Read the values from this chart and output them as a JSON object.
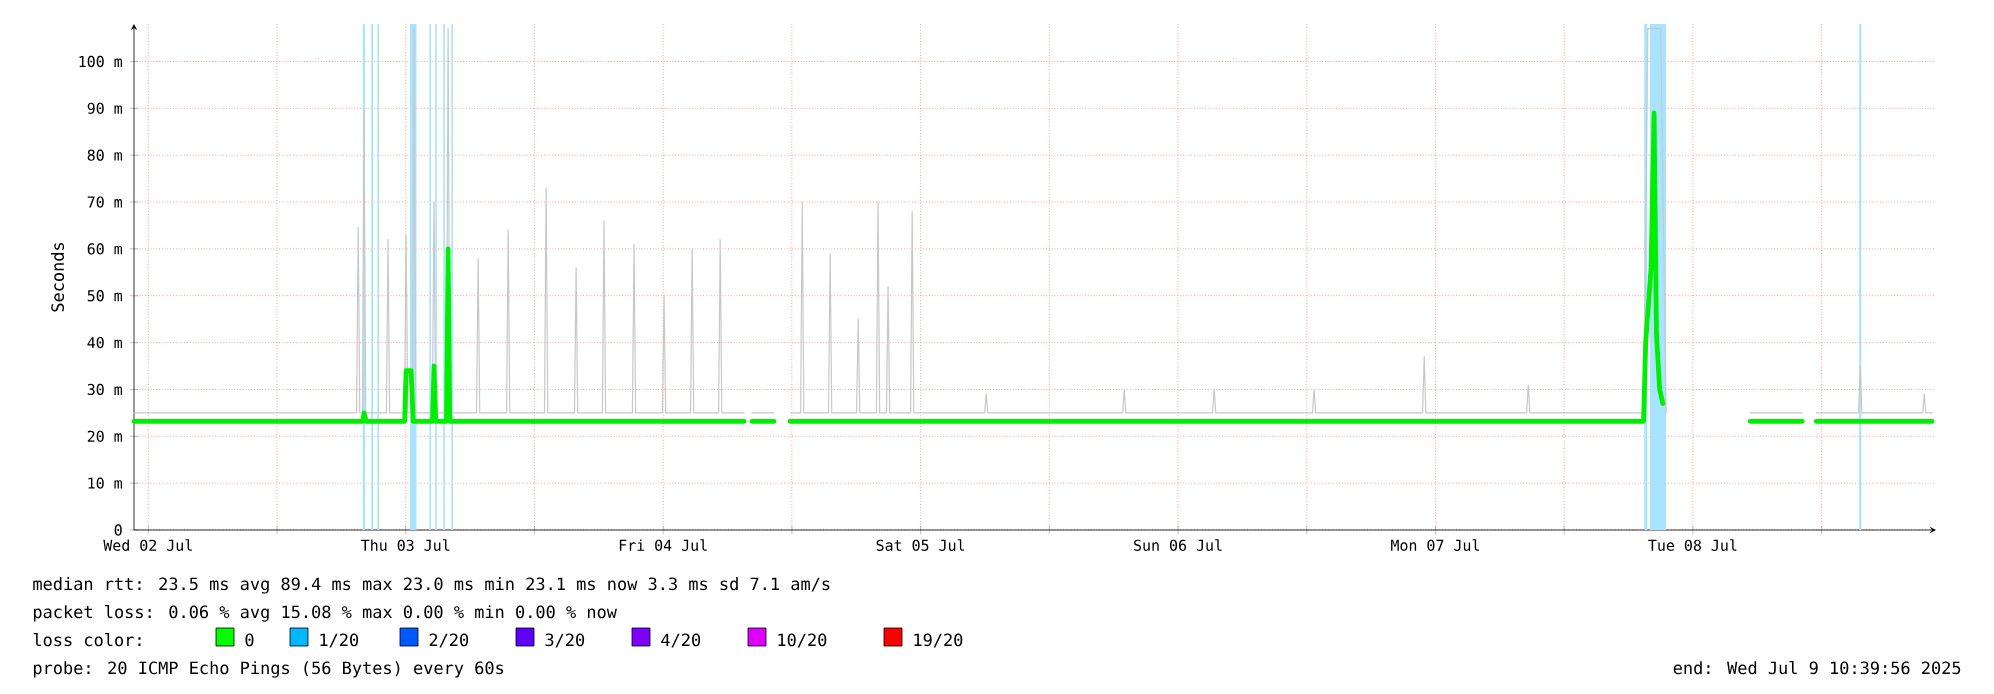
{
  "chart_data": {
    "type": "line",
    "ylabel": "Seconds",
    "xlim": [
      "2025-07-02T10:40",
      "2025-07-09T10:40"
    ],
    "xticks": [
      {
        "value": "2025-07-02T12:00",
        "label": "Wed 02 Jul"
      },
      {
        "value": "2025-07-03T00:00",
        "label": null
      },
      {
        "value": "2025-07-03T12:00",
        "label": "Thu 03 Jul"
      },
      {
        "value": "2025-07-04T00:00",
        "label": null
      },
      {
        "value": "2025-07-04T12:00",
        "label": "Fri 04 Jul"
      },
      {
        "value": "2025-07-05T00:00",
        "label": null
      },
      {
        "value": "2025-07-05T12:00",
        "label": "Sat 05 Jul"
      },
      {
        "value": "2025-07-06T00:00",
        "label": null
      },
      {
        "value": "2025-07-06T12:00",
        "label": "Sun 06 Jul"
      },
      {
        "value": "2025-07-07T00:00",
        "label": null
      },
      {
        "value": "2025-07-07T12:00",
        "label": "Mon 07 Jul"
      },
      {
        "value": "2025-07-08T00:00",
        "label": null
      },
      {
        "value": "2025-07-08T12:00",
        "label": "Tue 08 Jul"
      },
      {
        "value": "2025-07-09T00:00",
        "label": null
      }
    ],
    "ylim": [
      0,
      108
    ],
    "yticks": [
      {
        "value": 0,
        "label": "0"
      },
      {
        "value": 10,
        "label": "10 m"
      },
      {
        "value": 20,
        "label": "20 m"
      },
      {
        "value": 30,
        "label": "30 m"
      },
      {
        "value": 40,
        "label": "40 m"
      },
      {
        "value": 50,
        "label": "50 m"
      },
      {
        "value": 60,
        "label": "60 m"
      },
      {
        "value": 70,
        "label": "70 m"
      },
      {
        "value": 80,
        "label": "80 m"
      },
      {
        "value": 90,
        "label": "90 m"
      },
      {
        "value": 100,
        "label": "100 m"
      }
    ],
    "grid": true,
    "bands": [
      {
        "axis": "x",
        "from": "2025-07-03T08:00",
        "to": "2025-07-03T08:12",
        "color": "#a8e4ff"
      },
      {
        "axis": "x",
        "from": "2025-07-03T08:47",
        "to": "2025-07-03T08:57",
        "color": "#a8e4ff"
      },
      {
        "axis": "x",
        "from": "2025-07-03T09:21",
        "to": "2025-07-03T09:30",
        "color": "#a8e4ff"
      },
      {
        "axis": "x",
        "from": "2025-07-03T12:24",
        "to": "2025-07-03T13:00",
        "color": "#a8e4ff"
      },
      {
        "axis": "x",
        "from": "2025-07-03T14:12",
        "to": "2025-07-03T14:21",
        "color": "#a8e4ff"
      },
      {
        "axis": "x",
        "from": "2025-07-03T14:45",
        "to": "2025-07-03T14:54",
        "color": "#a8e4ff"
      },
      {
        "axis": "x",
        "from": "2025-07-03T15:30",
        "to": "2025-07-03T15:39",
        "color": "#a8e4ff"
      },
      {
        "axis": "x",
        "from": "2025-07-03T16:15",
        "to": "2025-07-03T16:24",
        "color": "#a8e4ff"
      },
      {
        "axis": "x",
        "from": "2025-07-08T07:28",
        "to": "2025-07-08T07:45",
        "color": "#a8e4ff"
      },
      {
        "axis": "x",
        "from": "2025-07-08T08:00",
        "to": "2025-07-08T09:30",
        "color": "#a8e4ff"
      },
      {
        "axis": "x",
        "from": "2025-07-09T03:30",
        "to": "2025-07-09T03:42",
        "color": "#a8e4ff"
      }
    ],
    "series": [
      {
        "color": "#c8c8c8",
        "x": [
          "2025-07-02T10:40",
          "2025-07-03T07:25",
          "2025-07-03T07:34",
          "2025-07-03T07:43",
          "2025-07-03T07:58",
          "2025-07-03T08:07",
          "2025-07-03T08:16",
          "2025-07-03T10:12",
          "2025-07-03T10:21",
          "2025-07-03T10:30",
          "2025-07-03T11:53",
          "2025-07-03T12:02",
          "2025-07-03T12:11",
          "2025-07-03T12:38",
          "2025-07-03T12:47",
          "2025-07-03T12:56",
          "2025-07-03T14:29",
          "2025-07-03T14:38",
          "2025-07-03T14:47",
          "2025-07-03T15:48",
          "2025-07-03T15:57",
          "2025-07-03T16:06",
          "2025-07-03T18:36",
          "2025-07-03T18:45",
          "2025-07-03T18:54",
          "2025-07-03T21:24",
          "2025-07-03T21:33",
          "2025-07-03T21:42",
          "2025-07-04T00:56",
          "2025-07-04T01:05",
          "2025-07-04T01:14",
          "2025-07-04T03:44",
          "2025-07-04T03:53",
          "2025-07-04T04:02",
          "2025-07-04T06:20",
          "2025-07-04T06:29",
          "2025-07-04T06:38",
          "2025-07-04T09:08",
          "2025-07-04T09:17",
          "2025-07-04T09:26",
          "2025-07-04T11:56",
          "2025-07-04T12:05",
          "2025-07-04T12:14",
          "2025-07-04T14:33",
          "2025-07-04T14:42",
          "2025-07-04T14:51",
          "2025-07-04T17:10",
          "2025-07-04T17:19",
          "2025-07-04T17:28",
          "2025-07-04T19:33",
          "2025-07-04T19:54",
          "2025-07-04T20:17",
          "2025-07-04T22:20",
          "2025-07-04T23:06",
          "2025-07-04T23:50",
          "2025-07-05T00:49",
          "2025-07-05T00:58",
          "2025-07-05T01:07",
          "2025-07-05T03:25",
          "2025-07-05T03:34",
          "2025-07-05T03:43",
          "2025-07-05T06:02",
          "2025-07-05T06:11",
          "2025-07-05T06:20",
          "2025-07-05T07:53",
          "2025-07-05T08:02",
          "2025-07-05T08:11",
          "2025-07-05T08:49",
          "2025-07-05T08:58",
          "2025-07-05T09:07",
          "2025-07-05T11:04",
          "2025-07-05T11:13",
          "2025-07-05T11:22",
          "2025-07-05T17:58",
          "2025-07-05T18:07",
          "2025-07-05T18:16",
          "2025-07-06T06:50",
          "2025-07-06T06:59",
          "2025-07-06T07:08",
          "2025-07-06T15:13",
          "2025-07-06T15:22",
          "2025-07-06T15:31",
          "2025-07-07T00:32",
          "2025-07-07T00:41",
          "2025-07-07T00:50",
          "2025-07-07T10:48",
          "2025-07-07T10:57",
          "2025-07-07T11:06",
          "2025-07-07T20:30",
          "2025-07-07T20:39",
          "2025-07-07T20:48",
          "2025-07-08T07:24",
          "2025-07-08T07:48",
          "2025-07-08T08:23",
          "2025-07-08T09:00",
          "2025-07-08T09:30",
          "2025-07-08T13:00",
          "2025-07-08T17:21",
          "2025-07-08T22:12",
          "2025-07-08T22:54",
          "2025-07-08T23:30",
          "2025-07-09T03:27",
          "2025-07-09T03:36",
          "2025-07-09T03:45",
          "2025-07-09T09:25",
          "2025-07-09T09:34",
          "2025-07-09T09:43",
          "2025-07-09T10:18"
        ],
        "values": [
          25,
          25,
          64.6,
          25,
          25,
          89.6,
          25,
          25,
          62,
          25,
          25,
          63,
          25,
          25,
          107,
          25,
          25,
          70,
          25,
          25,
          107,
          25,
          25,
          58,
          25,
          25,
          64,
          25,
          25,
          73,
          25,
          25,
          56,
          25,
          25,
          66,
          25,
          25,
          61,
          25,
          25,
          50,
          25,
          25,
          60,
          25,
          25,
          62,
          25,
          25,
          null,
          25,
          25,
          null,
          25,
          25,
          70,
          25,
          25,
          59,
          25,
          25,
          45,
          25,
          25,
          70,
          25,
          25,
          52,
          25,
          25,
          68,
          25,
          25,
          29,
          25,
          25,
          30,
          25,
          25,
          30,
          25,
          25,
          30,
          25,
          25,
          37,
          25,
          25,
          31,
          25,
          25,
          107,
          107,
          107,
          25,
          null,
          25,
          25,
          null,
          25,
          25,
          35,
          25,
          25,
          29,
          25,
          25
        ]
      },
      {
        "color": "#00ee00",
        "x": [
          "2025-07-02T10:40",
          "2025-07-03T08:00",
          "2025-07-03T08:07",
          "2025-07-03T08:18",
          "2025-07-03T11:54",
          "2025-07-03T12:02",
          "2025-07-03T12:30",
          "2025-07-03T12:42",
          "2025-07-03T14:30",
          "2025-07-03T14:38",
          "2025-07-03T14:48",
          "2025-07-03T15:48",
          "2025-07-03T15:57",
          "2025-07-03T16:06",
          "2025-07-04T19:33",
          "2025-07-04T19:54",
          "2025-07-04T20:17",
          "2025-07-04T22:20",
          "2025-07-04T23:06",
          "2025-07-04T23:50",
          "2025-07-08T07:24",
          "2025-07-08T07:36",
          "2025-07-08T08:06",
          "2025-07-08T08:23",
          "2025-07-08T08:36",
          "2025-07-08T08:54",
          "2025-07-08T09:12",
          "2025-07-08T13:00",
          "2025-07-08T17:21",
          "2025-07-08T22:12",
          "2025-07-08T22:54",
          "2025-07-08T23:30",
          "2025-07-09T10:18"
        ],
        "values": [
          23.2,
          23.2,
          25,
          23.2,
          23.2,
          34,
          34,
          23.2,
          23.2,
          35,
          23.2,
          23.2,
          60,
          23.2,
          23.2,
          null,
          23.2,
          23.2,
          null,
          23.2,
          23.2,
          40,
          56,
          89,
          42,
          30,
          27,
          null,
          23.2,
          23.2,
          null,
          23.2,
          23.2
        ]
      }
    ],
    "annotations": [
      "median rtt:  23.5 ms avg  89.4 ms max  23.0 ms min  23.1 ms now  3.3 ms sd  7.1   am/s",
      "packet loss: 0.06 % avg  15.08 % max  0.00 % min  0.00 % now",
      "loss color:",
      "0",
      "1/20",
      "2/20",
      "3/20",
      "4/20",
      "10/20",
      "19/20",
      "probe:       20 ICMP Echo Pings (56 Bytes) every 60s",
      "end: Wed Jul  9 10:39:56 2025"
    ]
  }
}
